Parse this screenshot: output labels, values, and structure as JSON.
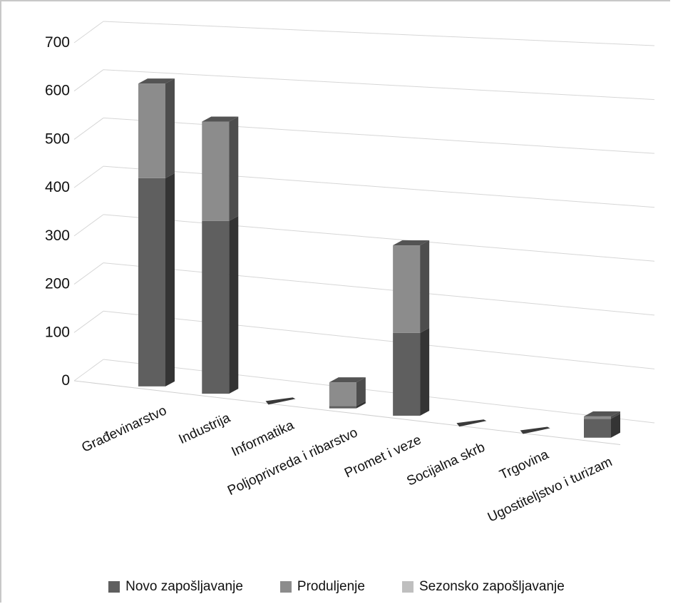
{
  "chart_data": {
    "type": "bar",
    "stacked": true,
    "three_d": true,
    "categories": [
      "Građevinarstvo",
      "Industrija",
      "Informatika",
      "Poljoprivreda i ribarstvo",
      "Promet i veze",
      "Socijalna skrb",
      "Trgovina",
      "Ugostiteljstvo i turizam"
    ],
    "series": [
      {
        "name": "Novo zapošljavanje",
        "color": "#5f5f5f",
        "values": [
          440,
          365,
          0,
          5,
          175,
          0,
          0,
          40
        ]
      },
      {
        "name": "Produljenje",
        "color": "#8c8c8c",
        "values": [
          200,
          210,
          0,
          50,
          185,
          0,
          0,
          5
        ]
      },
      {
        "name": "Sezonsko zapošljavanje",
        "color": "#bfbfbf",
        "values": [
          0,
          0,
          0,
          0,
          0,
          0,
          0,
          0
        ]
      }
    ],
    "yticks": [
      0,
      100,
      200,
      300,
      400,
      500,
      600,
      700
    ],
    "ylim": [
      0,
      700
    ],
    "grid": true,
    "legend": "bottom"
  }
}
